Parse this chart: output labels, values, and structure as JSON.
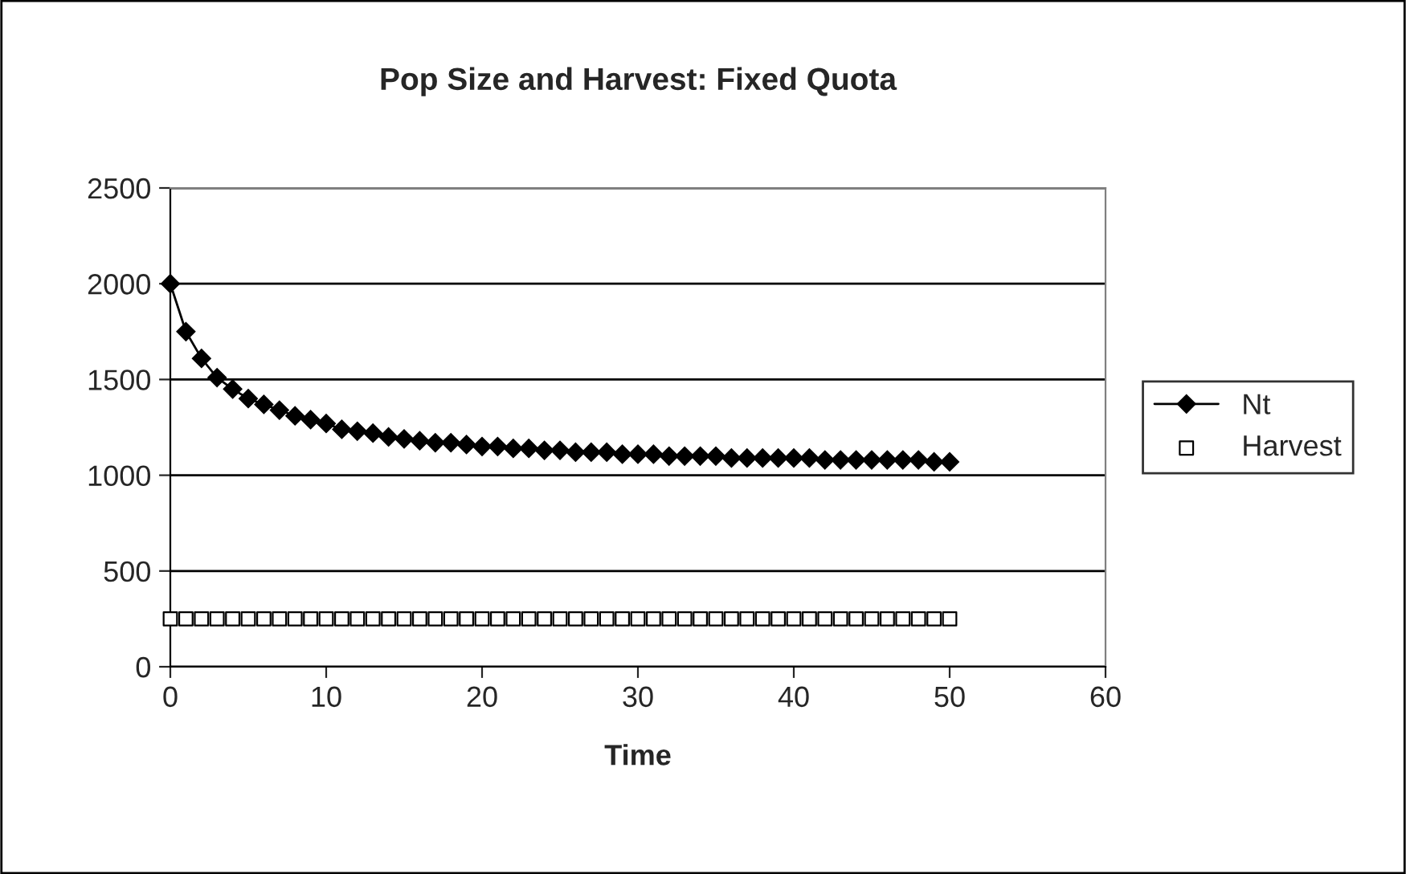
{
  "chart_data": {
    "type": "line",
    "title": "Pop Size and Harvest: Fixed Quota",
    "xlabel": "Time",
    "x": [
      0,
      1,
      2,
      3,
      4,
      5,
      6,
      7,
      8,
      9,
      10,
      11,
      12,
      13,
      14,
      15,
      16,
      17,
      18,
      19,
      20,
      21,
      22,
      23,
      24,
      25,
      26,
      27,
      28,
      29,
      30,
      31,
      32,
      33,
      34,
      35,
      36,
      37,
      38,
      39,
      40,
      41,
      42,
      43,
      44,
      45,
      46,
      47,
      48,
      49,
      50
    ],
    "series": [
      {
        "name": "Nt",
        "color": "#000000",
        "marker": "diamond",
        "values": [
          2000,
          1750,
          1610,
          1510,
          1450,
          1400,
          1370,
          1340,
          1310,
          1290,
          1270,
          1240,
          1230,
          1220,
          1200,
          1190,
          1180,
          1170,
          1170,
          1160,
          1150,
          1150,
          1140,
          1140,
          1130,
          1130,
          1120,
          1120,
          1120,
          1110,
          1110,
          1110,
          1100,
          1100,
          1100,
          1100,
          1090,
          1090,
          1090,
          1090,
          1090,
          1090,
          1080,
          1080,
          1080,
          1080,
          1080,
          1080,
          1080,
          1070,
          1070
        ]
      },
      {
        "name": "Harvest",
        "type": "scatter",
        "color": "#000000",
        "marker": "square",
        "values": [
          250,
          250,
          250,
          250,
          250,
          250,
          250,
          250,
          250,
          250,
          250,
          250,
          250,
          250,
          250,
          250,
          250,
          250,
          250,
          250,
          250,
          250,
          250,
          250,
          250,
          250,
          250,
          250,
          250,
          250,
          250,
          250,
          250,
          250,
          250,
          250,
          250,
          250,
          250,
          250,
          250,
          250,
          250,
          250,
          250,
          250,
          250,
          250,
          250,
          250,
          250
        ]
      }
    ],
    "xlim": [
      0,
      60
    ],
    "xticks": [
      0,
      10,
      20,
      30,
      40,
      50,
      60
    ],
    "ylim": [
      0,
      2500
    ],
    "yticks": [
      0,
      500,
      1000,
      1500,
      2000,
      2500
    ],
    "grid": "y",
    "legend": "right"
  }
}
